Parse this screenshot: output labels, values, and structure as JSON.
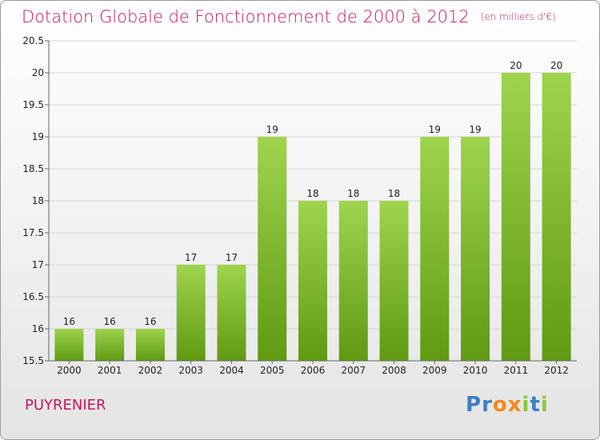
{
  "header": {
    "title": "Dotation Globale de Fonctionnement de 2000 à 2012",
    "unit": "(en milliers d'€)"
  },
  "footer": {
    "commune": "PUYRENIER"
  },
  "logo": {
    "text": "Proxiti",
    "letters": [
      {
        "ch": "P",
        "color": "#3a7fc8"
      },
      {
        "ch": "r",
        "color": "#3a7fc8"
      },
      {
        "ch": "o",
        "color": "#f08a1c"
      },
      {
        "ch": "x",
        "color": "#f08a1c"
      },
      {
        "ch": "i",
        "color": "#8cc63f"
      },
      {
        "ch": "t",
        "color": "#3a7fc8"
      },
      {
        "ch": "i",
        "color": "#8cc63f"
      }
    ]
  },
  "colors": {
    "bar_light": "#9fd44e",
    "bar_dark": "#5f9a12",
    "text": "#222222",
    "title": "#c2185b"
  },
  "chart_data": {
    "type": "bar",
    "title": "Dotation Globale de Fonctionnement de 2000 à 2012",
    "xlabel": "",
    "ylabel": "(en milliers d'€)",
    "categories": [
      "2000",
      "2001",
      "2002",
      "2003",
      "2004",
      "2005",
      "2006",
      "2007",
      "2008",
      "2009",
      "2010",
      "2011",
      "2012"
    ],
    "values": [
      16,
      16,
      16,
      17,
      17,
      19,
      18,
      18,
      18,
      19,
      19,
      20,
      20
    ],
    "value_labels": [
      "16",
      "16",
      "16",
      "17",
      "17",
      "19",
      "18",
      "18",
      "18",
      "19",
      "19",
      "20",
      "20"
    ],
    "ylim": [
      15.5,
      20.5
    ],
    "yticks": [
      15.5,
      16,
      16.5,
      17,
      17.5,
      18,
      18.5,
      19,
      19.5,
      20,
      20.5
    ],
    "ytick_labels": [
      "15.5",
      "16",
      "16.5",
      "17",
      "17.5",
      "18",
      "18.5",
      "19",
      "19.5",
      "20",
      "20.5"
    ],
    "grid": true
  }
}
